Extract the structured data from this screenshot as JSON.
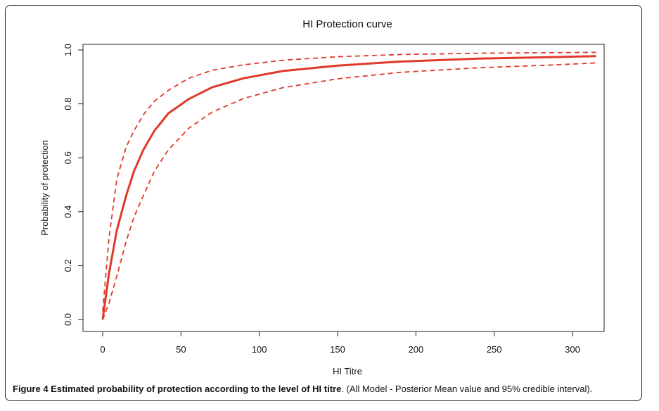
{
  "chart_data": {
    "type": "line",
    "title": "HI Protection curve",
    "xlabel": "HI Titre",
    "ylabel": "Probability of protection",
    "xlim": [
      0,
      320
    ],
    "ylim": [
      0,
      1.0
    ],
    "x_ticks": [
      0,
      50,
      100,
      150,
      200,
      250,
      300
    ],
    "x_tick_labels": [
      "0",
      "50",
      "100",
      "150",
      "200",
      "250",
      "300"
    ],
    "y_ticks": [
      0,
      0.2,
      0.4,
      0.6,
      0.8,
      1.0
    ],
    "y_tick_labels": [
      "0.0",
      "0.2",
      "0.4",
      "0.6",
      "0.8",
      "1.0"
    ],
    "grid": false,
    "series": [
      {
        "style": "solid",
        "color": "#e0392b",
        "x": [
          0,
          4,
          9,
          15,
          20,
          26,
          33,
          42,
          55,
          70,
          90,
          115,
          150,
          190,
          240,
          290,
          315
        ],
        "y": [
          0.0,
          0.17,
          0.33,
          0.46,
          0.55,
          0.63,
          0.7,
          0.765,
          0.818,
          0.862,
          0.895,
          0.922,
          0.942,
          0.957,
          0.968,
          0.974,
          0.977
        ]
      },
      {
        "style": "dashed",
        "color": "#e0392b",
        "x": [
          0,
          4,
          9,
          15,
          20,
          26,
          33,
          42,
          55,
          70,
          90,
          115,
          150,
          190,
          240,
          290,
          315
        ],
        "y": [
          0.03,
          0.3,
          0.52,
          0.64,
          0.7,
          0.76,
          0.81,
          0.85,
          0.895,
          0.925,
          0.945,
          0.962,
          0.975,
          0.983,
          0.988,
          0.99,
          0.991
        ]
      },
      {
        "style": "dashed",
        "color": "#e0392b",
        "x": [
          0,
          4,
          9,
          15,
          20,
          26,
          33,
          42,
          55,
          70,
          90,
          115,
          150,
          190,
          240,
          290,
          315
        ],
        "y": [
          0.0,
          0.06,
          0.16,
          0.29,
          0.38,
          0.46,
          0.55,
          0.63,
          0.71,
          0.77,
          0.82,
          0.86,
          0.893,
          0.917,
          0.934,
          0.945,
          0.952
        ]
      }
    ]
  },
  "caption": {
    "bold": "Figure 4 Estimated probability of protection according to the level of HI titre",
    "rest": ". (All Model - Posterior Mean value and 95% credible interval)."
  }
}
